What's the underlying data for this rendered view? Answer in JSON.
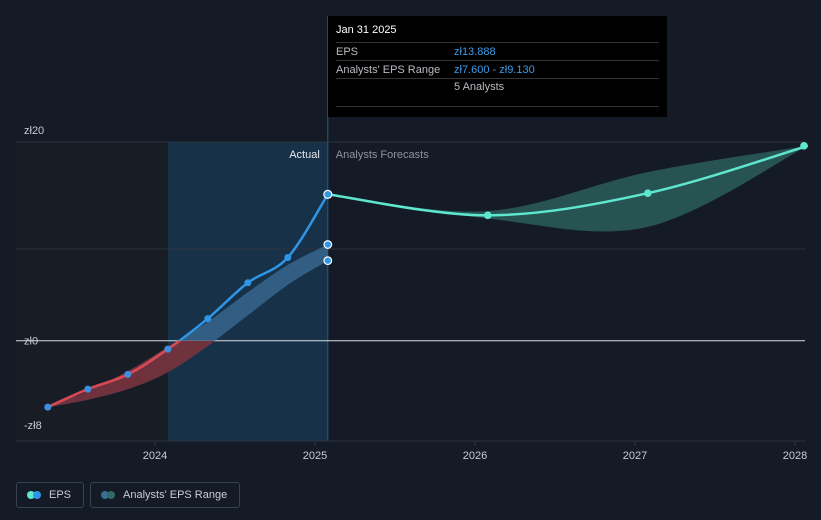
{
  "chart_data": {
    "type": "line",
    "currency_prefix": "zł",
    "y_ticks": [
      {
        "value": 20,
        "label": "zł20"
      },
      {
        "value": 0,
        "label": "zł0"
      },
      {
        "value": -8,
        "label": "-zł8"
      }
    ],
    "ylim": [
      -8,
      20
    ],
    "x_ticks": [
      {
        "value": 2024.0,
        "label": "2024"
      },
      {
        "value": 2025.0,
        "label": "2025"
      },
      {
        "value": 2026.0,
        "label": "2026"
      },
      {
        "value": 2027.0,
        "label": "2027"
      },
      {
        "value": 2028.0,
        "label": "2028"
      }
    ],
    "xlim": [
      2022.9,
      2028.08
    ],
    "actual_label": "Actual",
    "forecast_label": "Analysts Forecasts",
    "series": [
      {
        "name": "EPS",
        "actual_points": [
          {
            "x": 2023.33,
            "y": -6.3
          },
          {
            "x": 2023.58,
            "y": -4.6
          },
          {
            "x": 2023.83,
            "y": -3.2
          },
          {
            "x": 2024.08,
            "y": -0.8
          },
          {
            "x": 2024.33,
            "y": 2.1
          },
          {
            "x": 2024.58,
            "y": 5.5
          },
          {
            "x": 2024.83,
            "y": 7.9
          },
          {
            "x": 2025.08,
            "y": 13.888
          }
        ],
        "forecast_points": [
          {
            "x": 2025.08,
            "y": 13.888
          },
          {
            "x": 2026.08,
            "y": 11.9
          },
          {
            "x": 2027.08,
            "y": 14.0
          },
          {
            "x": 2028.08,
            "y": 18.5
          }
        ]
      },
      {
        "name": "Analysts' EPS Range",
        "actual_low": [
          {
            "x": 2023.33,
            "y": -6.3
          },
          {
            "x": 2023.58,
            "y": -5.6
          },
          {
            "x": 2023.83,
            "y": -4.6
          },
          {
            "x": 2024.08,
            "y": -3.0
          },
          {
            "x": 2024.33,
            "y": -0.5
          },
          {
            "x": 2024.58,
            "y": 2.4
          },
          {
            "x": 2024.83,
            "y": 5.3
          },
          {
            "x": 2025.08,
            "y": 7.6
          }
        ],
        "actual_high": [
          {
            "x": 2023.33,
            "y": -6.3
          },
          {
            "x": 2023.58,
            "y": -4.8
          },
          {
            "x": 2023.83,
            "y": -2.9
          },
          {
            "x": 2024.08,
            "y": -0.6
          },
          {
            "x": 2024.33,
            "y": 1.8
          },
          {
            "x": 2024.58,
            "y": 4.6
          },
          {
            "x": 2024.83,
            "y": 7.2
          },
          {
            "x": 2025.08,
            "y": 9.13
          }
        ],
        "forecast_low": [
          {
            "x": 2025.08,
            "y": 13.888
          },
          {
            "x": 2026.08,
            "y": 11.6
          },
          {
            "x": 2027.08,
            "y": 10.8
          },
          {
            "x": 2028.08,
            "y": 18.5
          }
        ],
        "forecast_high": [
          {
            "x": 2025.08,
            "y": 13.888
          },
          {
            "x": 2026.08,
            "y": 12.3
          },
          {
            "x": 2027.08,
            "y": 16.0
          },
          {
            "x": 2028.08,
            "y": 18.5
          }
        ],
        "range_markers": [
          {
            "x": 2025.08,
            "y": 9.13
          },
          {
            "x": 2025.08,
            "y": 7.6
          }
        ]
      }
    ],
    "colors": {
      "background": "#151b26",
      "actual_region": "#1a4466",
      "eps_actual": "#2f95e5",
      "eps_negative": "#e0454d",
      "eps_forecast": "#5ee6cf",
      "range_fill": "#3b6e95",
      "range_forecast_fill": "#2f6b66",
      "grid": "#2c333f"
    },
    "grid": true
  },
  "tooltip": {
    "date": "Jan 31 2025",
    "eps_label": "EPS",
    "eps_value": "zł13.888",
    "range_label": "Analysts' EPS Range",
    "range_value": "zł7.600 - zł9.130",
    "analysts": "5 Analysts"
  },
  "legend": {
    "eps": "EPS",
    "range": "Analysts' EPS Range"
  }
}
